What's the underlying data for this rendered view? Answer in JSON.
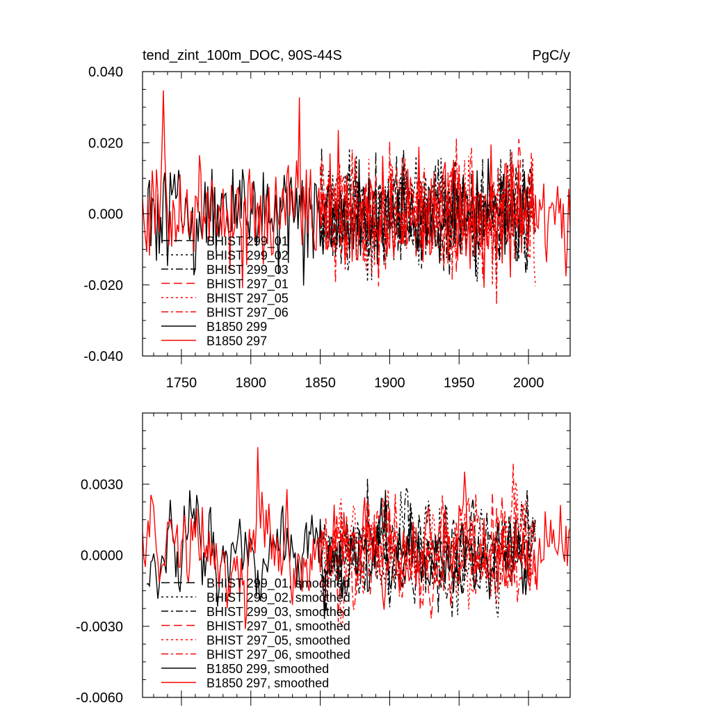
{
  "chart_data": [
    {
      "type": "line",
      "title": "tend_zint_100m_DOC, 90S-44S",
      "units": "PgC/y",
      "xlim": [
        1722,
        2030
      ],
      "ylim": [
        -0.04,
        0.04
      ],
      "xticks": [
        1750,
        1800,
        1850,
        1900,
        1950,
        2000
      ],
      "xtick_labels": [
        "1750",
        "1800",
        "1850",
        "1900",
        "1950",
        "2000"
      ],
      "yticks": [
        -0.04,
        -0.02,
        0.0,
        0.02,
        0.04
      ],
      "ytick_labels": [
        "-0.040",
        "-0.020",
        "0.000",
        "0.020",
        "0.040"
      ],
      "legend": [
        {
          "label": "BHIST 299_01",
          "color": "#000000",
          "dash": "longdash"
        },
        {
          "label": "BHIST 299_02",
          "color": "#000000",
          "dash": "dot"
        },
        {
          "label": "BHIST 299_03",
          "color": "#000000",
          "dash": "dashdot"
        },
        {
          "label": "BHIST 297_01",
          "color": "#ff0000",
          "dash": "longdash"
        },
        {
          "label": "BHIST 297_05",
          "color": "#ff0000",
          "dash": "dot"
        },
        {
          "label": "BHIST 297_06",
          "color": "#ff0000",
          "dash": "dashdot"
        },
        {
          "label": "B1850 299",
          "color": "#000000",
          "dash": "solid"
        },
        {
          "label": "B1850 297",
          "color": "#ff0000",
          "dash": "solid"
        }
      ],
      "series": [
        {
          "name": "BHIST 299_01",
          "x_start": 1850,
          "x_end": 2005,
          "amplitude": 0.0075,
          "seed": 11
        },
        {
          "name": "BHIST 299_02",
          "x_start": 1850,
          "x_end": 2005,
          "amplitude": 0.0075,
          "seed": 23
        },
        {
          "name": "BHIST 299_03",
          "x_start": 1850,
          "x_end": 2005,
          "amplitude": 0.0075,
          "seed": 37
        },
        {
          "name": "BHIST 297_01",
          "x_start": 1850,
          "x_end": 2005,
          "amplitude": 0.008,
          "seed": 41
        },
        {
          "name": "BHIST 297_05",
          "x_start": 1850,
          "x_end": 2005,
          "amplitude": 0.008,
          "seed": 53
        },
        {
          "name": "BHIST 297_06",
          "x_start": 1850,
          "x_end": 2005,
          "amplitude": 0.008,
          "seed": 67
        },
        {
          "name": "B1850 299",
          "x_start": 1725,
          "x_end": 2000,
          "amplitude": 0.007,
          "seed": 79
        },
        {
          "name": "B1850 297",
          "x_start": 1722,
          "x_end": 2030,
          "amplitude": 0.0075,
          "seed": 83
        }
      ]
    },
    {
      "type": "line",
      "title": "",
      "units": "",
      "xlim": [
        1722,
        2030
      ],
      "ylim": [
        -0.006,
        0.006
      ],
      "xticks": [
        1750,
        1800,
        1850,
        1900,
        1950,
        2000
      ],
      "xtick_labels": [],
      "yticks": [
        -0.006,
        -0.003,
        0.0,
        0.003
      ],
      "ytick_labels": [
        "-0.0060",
        "-0.0030",
        "0.0000",
        "0.0030"
      ],
      "legend": [
        {
          "label": "BHIST 299_01, smoothed",
          "color": "#000000",
          "dash": "longdash"
        },
        {
          "label": "BHIST 299_02, smoothed",
          "color": "#000000",
          "dash": "dot"
        },
        {
          "label": "BHIST 299_03, smoothed",
          "color": "#000000",
          "dash": "dashdot"
        },
        {
          "label": "BHIST 297_01, smoothed",
          "color": "#ff0000",
          "dash": "longdash"
        },
        {
          "label": "BHIST 297_05, smoothed",
          "color": "#ff0000",
          "dash": "dot"
        },
        {
          "label": "BHIST 297_06, smoothed",
          "color": "#ff0000",
          "dash": "dashdot"
        },
        {
          "label": "B1850 299, smoothed",
          "color": "#000000",
          "dash": "solid"
        },
        {
          "label": "B1850 297, smoothed",
          "color": "#ff0000",
          "dash": "solid"
        }
      ],
      "series": [
        {
          "name": "BHIST 299_01, smoothed",
          "x_start": 1850,
          "x_end": 2005,
          "amplitude": 0.0011,
          "seed": 111
        },
        {
          "name": "BHIST 299_02, smoothed",
          "x_start": 1850,
          "x_end": 2005,
          "amplitude": 0.0011,
          "seed": 123
        },
        {
          "name": "BHIST 299_03, smoothed",
          "x_start": 1850,
          "x_end": 2005,
          "amplitude": 0.0011,
          "seed": 137
        },
        {
          "name": "BHIST 297_01, smoothed",
          "x_start": 1850,
          "x_end": 2005,
          "amplitude": 0.0012,
          "seed": 141
        },
        {
          "name": "BHIST 297_05, smoothed",
          "x_start": 1850,
          "x_end": 2005,
          "amplitude": 0.0012,
          "seed": 153
        },
        {
          "name": "BHIST 297_06, smoothed",
          "x_start": 1850,
          "x_end": 2005,
          "amplitude": 0.0012,
          "seed": 167
        },
        {
          "name": "B1850 299, smoothed",
          "x_start": 1725,
          "x_end": 2000,
          "amplitude": 0.001,
          "seed": 179
        },
        {
          "name": "B1850 297, smoothed",
          "x_start": 1722,
          "x_end": 2030,
          "amplitude": 0.0011,
          "seed": 183
        }
      ]
    }
  ]
}
